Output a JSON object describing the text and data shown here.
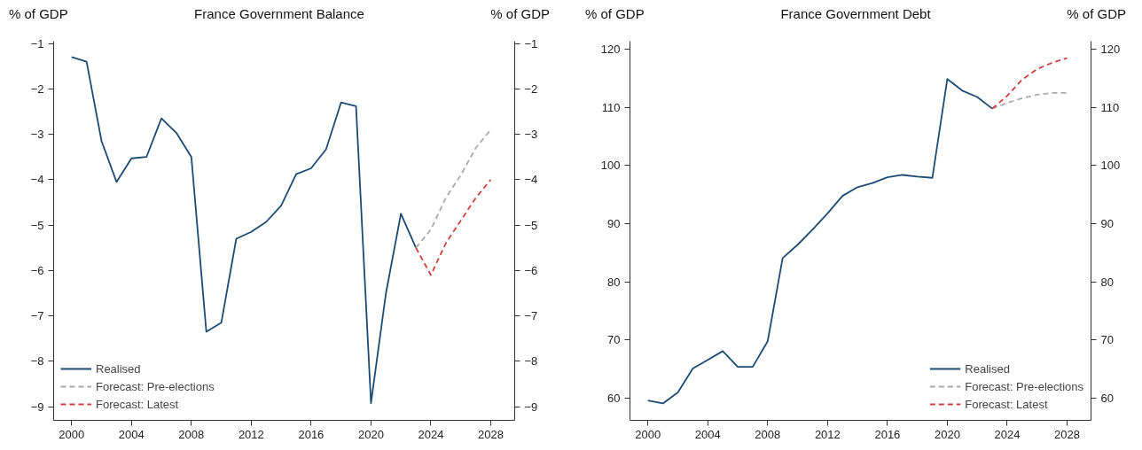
{
  "chart_data": [
    {
      "type": "line",
      "title": "France Government Balance",
      "ylabel": "% of GDP",
      "y2label": "% of GDP",
      "x": [
        2000,
        2001,
        2002,
        2003,
        2004,
        2005,
        2006,
        2007,
        2008,
        2009,
        2010,
        2011,
        2012,
        2013,
        2014,
        2015,
        2016,
        2017,
        2018,
        2019,
        2020,
        2021,
        2022,
        2023
      ],
      "series": [
        {
          "name": "Realised",
          "color": "#1d4a72",
          "line_style": "solid",
          "values": [
            -1.3,
            -1.4,
            -3.15,
            -4.05,
            -3.53,
            -3.5,
            -2.65,
            -2.97,
            -3.5,
            -7.35,
            -7.15,
            -5.3,
            -5.15,
            -4.93,
            -4.57,
            -3.88,
            -3.75,
            -3.33,
            -2.3,
            -2.38,
            -8.92,
            -6.5,
            -4.75,
            -5.5
          ]
        },
        {
          "name": "Forecast: Pre-elections",
          "color": "#aaaaaa",
          "line_style": "dashed",
          "x": [
            2023,
            2024,
            2025,
            2026,
            2027,
            2028
          ],
          "values": [
            -5.5,
            -5.1,
            -4.4,
            -3.9,
            -3.3,
            -2.9
          ]
        },
        {
          "name": "Forecast: Latest",
          "color": "#d04040",
          "line_style": "dashed",
          "x": [
            2023,
            2024,
            2025,
            2026,
            2027,
            2028
          ],
          "values": [
            -5.5,
            -6.1,
            -5.4,
            -4.9,
            -4.4,
            -4.0
          ]
        }
      ],
      "xlim": [
        1998.8,
        2029.6
      ],
      "xticks": [
        2000,
        2004,
        2008,
        2012,
        2016,
        2020,
        2024,
        2028
      ],
      "ylim": [
        -9.3,
        -0.95
      ],
      "yticks": [
        -9,
        -8,
        -7,
        -6,
        -5,
        -4,
        -3,
        -2,
        -1
      ],
      "y2lim": [
        -9.3,
        -0.95
      ],
      "y2ticks": [
        -9,
        -8,
        -7,
        -6,
        -5,
        -4,
        -3,
        -2,
        -1
      ],
      "grid": false,
      "legend": "bottom left"
    },
    {
      "type": "line",
      "title": "France Government Debt",
      "ylabel": "% of GDP",
      "y2label": "% of GDP",
      "x": [
        2000,
        2001,
        2002,
        2003,
        2004,
        2005,
        2006,
        2007,
        2008,
        2009,
        2010,
        2011,
        2012,
        2013,
        2014,
        2015,
        2016,
        2017,
        2018,
        2019,
        2020,
        2021,
        2022,
        2023
      ],
      "series": [
        {
          "name": "Realised",
          "color": "#1d4a72",
          "line_style": "solid",
          "values": [
            59.6,
            59.1,
            61,
            65.1,
            66.6,
            68.1,
            65.4,
            65.4,
            69.8,
            84.1,
            86.4,
            89,
            91.8,
            94.8,
            96.3,
            97,
            98,
            98.4,
            98.1,
            97.9,
            114.9,
            112.9,
            111.8,
            109.8
          ]
        },
        {
          "name": "Forecast: Pre-elections",
          "color": "#aaaaaa",
          "line_style": "dashed",
          "x": [
            2023,
            2024,
            2025,
            2026,
            2027,
            2028
          ],
          "values": [
            109.8,
            110.8,
            111.6,
            112.2,
            112.5,
            112.5
          ]
        },
        {
          "name": "Forecast: Latest",
          "color": "#d04040",
          "line_style": "dashed",
          "x": [
            2023,
            2024,
            2025,
            2026,
            2027,
            2028
          ],
          "values": [
            109.8,
            112,
            114.8,
            116.6,
            117.7,
            118.5
          ]
        }
      ],
      "xlim": [
        1998.8,
        2029.6
      ],
      "xticks": [
        2000,
        2004,
        2008,
        2012,
        2016,
        2020,
        2024,
        2028
      ],
      "ylim": [
        56.2,
        121.4
      ],
      "yticks": [
        60,
        70,
        80,
        90,
        100,
        110,
        120
      ],
      "y2lim": [
        56.2,
        121.4
      ],
      "y2ticks": [
        60,
        70,
        80,
        90,
        100,
        110,
        120
      ],
      "grid": false,
      "legend": "bottom right"
    }
  ]
}
